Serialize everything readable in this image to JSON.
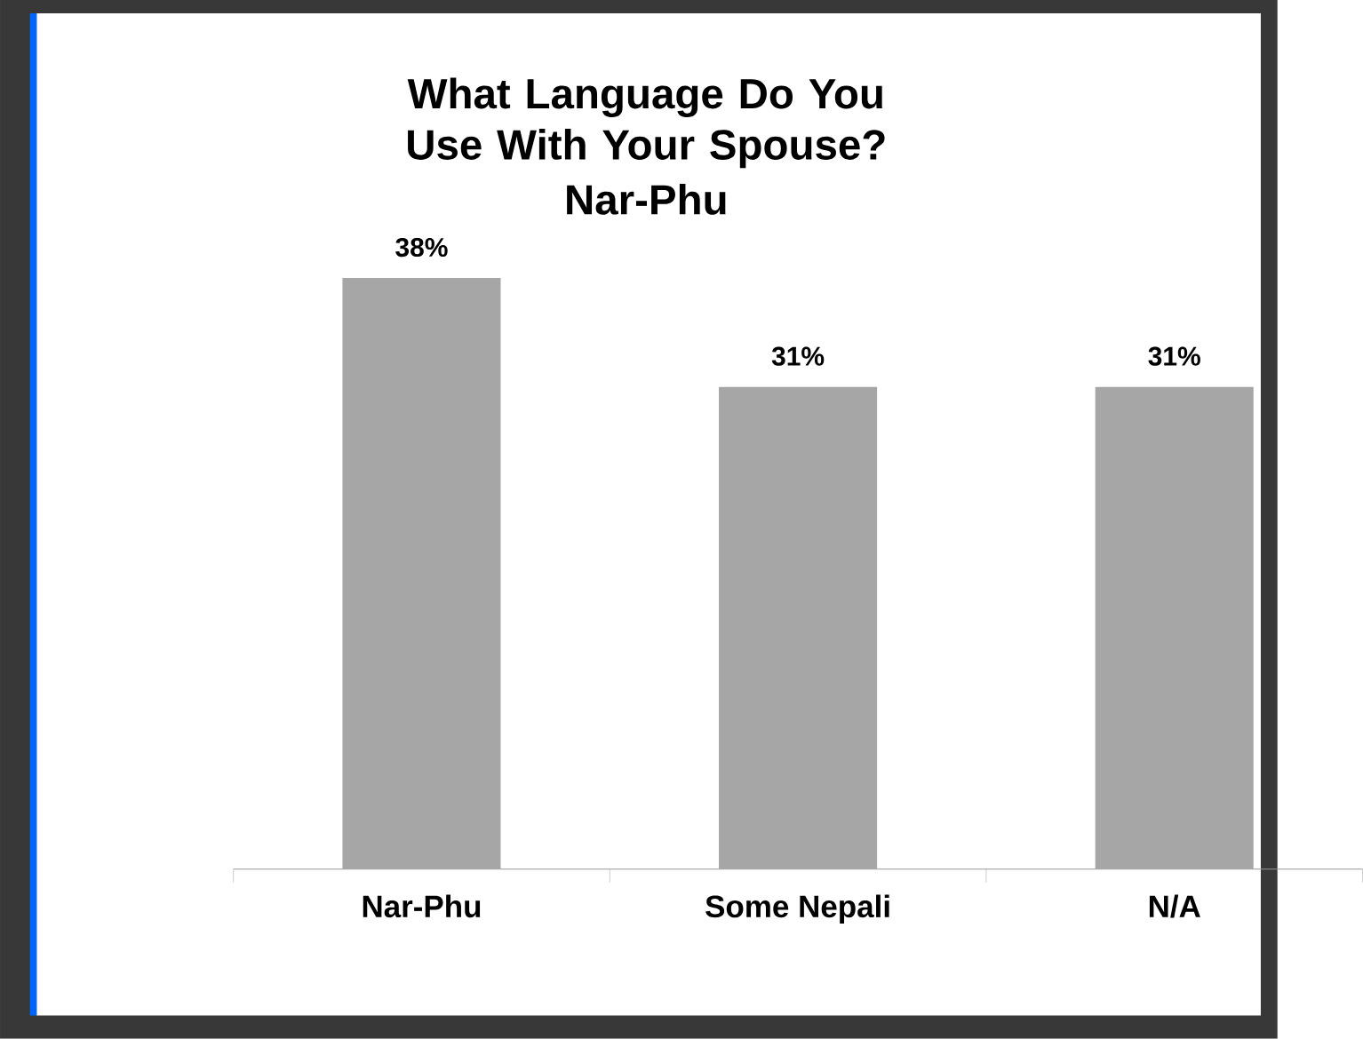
{
  "chart_data": {
    "type": "bar",
    "title": "What Language Do You Use With Your Spouse?",
    "subtitle": "Nar-Phu",
    "categories": [
      "Nar-Phu",
      "Some Nepali",
      "N/A"
    ],
    "values": [
      38,
      31,
      31
    ],
    "value_labels": [
      "38%",
      "31%",
      "31%"
    ],
    "color": "#a6a6a6"
  }
}
